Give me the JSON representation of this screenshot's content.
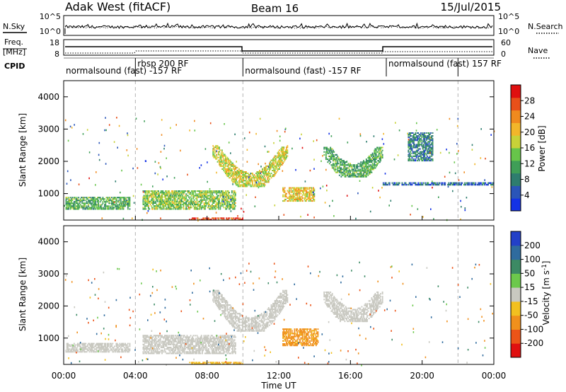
{
  "header": {
    "site": "Adak West (fitACF)",
    "beam": "Beam 16",
    "date": "15/Jul/2015"
  },
  "labels": {
    "nsky": "N.Sky",
    "nsearch": "N.Search",
    "freq_top": "Freq.",
    "freq_unit": "[MHz]",
    "nave": "Nave",
    "cpid": "CPID"
  },
  "strip_ticks": {
    "noise_left": [
      "10^5",
      "10^0"
    ],
    "noise_right": [
      "10^5",
      "10^0"
    ],
    "freq_left": [
      "18",
      "8"
    ],
    "nave_right": [
      "60",
      "0"
    ]
  },
  "cpid_segments": [
    {
      "label": "normalsound (fast) -157 RF",
      "start_h": 0,
      "end_h": 4.0
    },
    {
      "label": "rbsp 200 RF",
      "start_h": 4.0,
      "end_h": 10.0
    },
    {
      "label": "normalsound (fast) -157 RF",
      "start_h": 10.0,
      "end_h": 18.0
    },
    {
      "label": "normalsound (fast) 157 RF",
      "start_h": 18.0,
      "end_h": 22.0
    }
  ],
  "x_axis": {
    "label": "Time UT",
    "ticks": [
      "00:00",
      "04:00",
      "08:00",
      "12:00",
      "16:00",
      "20:00",
      "00:00"
    ]
  },
  "colorbars": {
    "power": {
      "label": "Power [dB]",
      "ticks": [
        "4",
        "8",
        "12",
        "16",
        "20",
        "24",
        "28"
      ],
      "colors": [
        "#1432e6",
        "#2a55b8",
        "#2e7d6e",
        "#3f9e57",
        "#67c54a",
        "#c8d238",
        "#f2b62a",
        "#f08a1e",
        "#e8501a",
        "#e01010"
      ]
    },
    "velocity": {
      "label": "Velocity [m s^-1]",
      "ticks": [
        "200",
        "100",
        "50",
        "15",
        "-15",
        "-50",
        "-100",
        "-200"
      ],
      "colors": [
        "#2340c8",
        "#2f6b9e",
        "#3c8a64",
        "#6cc84c",
        "#c8c8c0",
        "#f2c020",
        "#f0901c",
        "#ec5418",
        "#e01010"
      ]
    }
  },
  "chart_data": [
    {
      "type": "heatmap",
      "title": "",
      "xlabel": "",
      "ylabel": "Slant Range [km]",
      "xlim": [
        0,
        24
      ],
      "ylim": [
        180,
        4500
      ],
      "yticks": [
        1000,
        2000,
        3000,
        4000
      ],
      "colorbar_label": "Power [dB]",
      "colorbar_range": [
        0,
        32
      ],
      "regions": [
        {
          "name": "near-range band",
          "t": [
            0.1,
            3.7
          ],
          "r": [
            500,
            900
          ],
          "value_db": 12
        },
        {
          "name": "near-range band",
          "t": [
            4.4,
            9.6
          ],
          "r": [
            500,
            1100
          ],
          "value_db": 15
        },
        {
          "name": "arc",
          "t": [
            8.3,
            12.5
          ],
          "r": [
            1200,
            2500
          ],
          "value_db": 18
        },
        {
          "name": "patch",
          "t": [
            12.2,
            14.0
          ],
          "r": [
            750,
            1200
          ],
          "value_db": 20
        },
        {
          "name": "arc",
          "t": [
            14.5,
            17.8
          ],
          "r": [
            1500,
            2450
          ],
          "value_db": 12
        },
        {
          "name": "band",
          "t": [
            17.8,
            24
          ],
          "r": [
            1250,
            1350
          ],
          "value_db": 6
        },
        {
          "name": "far echoes",
          "t": [
            19.2,
            20.6
          ],
          "r": [
            2000,
            2900
          ],
          "value_db": 8
        },
        {
          "name": "ground scatter",
          "t": [
            7.0,
            10.0
          ],
          "r": [
            180,
            260
          ],
          "value_db": 28
        }
      ]
    },
    {
      "type": "heatmap",
      "title": "",
      "xlabel": "Time UT",
      "ylabel": "Slant Range [km]",
      "xlim": [
        0,
        24
      ],
      "ylim": [
        180,
        4500
      ],
      "yticks": [
        1000,
        2000,
        3000,
        4000
      ],
      "colorbar_label": "Velocity [m s^-1]",
      "colorbar_range": [
        -250,
        250
      ],
      "regions": [
        {
          "name": "near-range band",
          "t": [
            0.1,
            3.7
          ],
          "r": [
            550,
            850
          ],
          "value_ms": 0
        },
        {
          "name": "near-range band",
          "t": [
            4.4,
            9.6
          ],
          "r": [
            500,
            1100
          ],
          "value_ms": 0
        },
        {
          "name": "arc",
          "t": [
            8.3,
            12.5
          ],
          "r": [
            1200,
            2500
          ],
          "value_ms": 0
        },
        {
          "name": "patch",
          "t": [
            12.2,
            14.2
          ],
          "r": [
            750,
            1300
          ],
          "value_ms": -60
        },
        {
          "name": "arc",
          "t": [
            14.5,
            17.8
          ],
          "r": [
            1500,
            2450
          ],
          "value_ms": 0
        },
        {
          "name": "ground scatter",
          "t": [
            7.0,
            10.0
          ],
          "r": [
            180,
            260
          ],
          "value_ms": -40
        }
      ]
    }
  ]
}
